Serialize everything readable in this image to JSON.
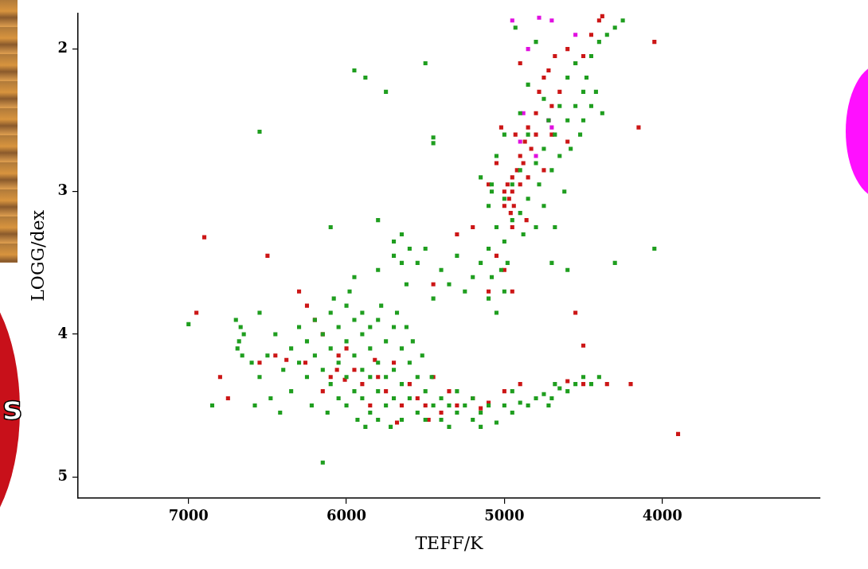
{
  "chart_data": {
    "type": "scatter",
    "xlabel": "TEFF/K",
    "ylabel": "LOGG/dex",
    "xlim": [
      7700,
      3000
    ],
    "ylim": [
      5.15,
      1.75
    ],
    "xticks": [
      7000,
      6000,
      5000,
      4000
    ],
    "yticks": [
      2,
      3,
      4,
      5
    ],
    "grid": false,
    "marker": "square",
    "annotations": [
      {
        "text": "s"
      }
    ],
    "series": [
      {
        "color": "#1f9e1f",
        "x": [
          6400,
          6350,
          6300,
          6300,
          6250,
          6250,
          6200,
          6200,
          6150,
          6150,
          6100,
          6100,
          6100,
          6050,
          6050,
          6050,
          6000,
          6000,
          6000,
          6000,
          5950,
          5950,
          5950,
          5900,
          5900,
          5900,
          5900,
          5850,
          5850,
          5850,
          5850,
          5800,
          5800,
          5800,
          5800,
          5750,
          5750,
          5750,
          5700,
          5700,
          5700,
          5650,
          5650,
          5650,
          5600,
          5600,
          5550,
          5550,
          5500,
          5500,
          6450,
          6500,
          6550,
          6550,
          6600,
          6480,
          6350,
          6220,
          6120,
          6080,
          5980,
          5930,
          5880,
          5780,
          5720,
          5680,
          5620,
          5580,
          5520,
          5460,
          6670,
          6680,
          6690,
          6660,
          6700,
          6650,
          7000,
          6850,
          6580,
          6420,
          5400,
          5400,
          5350,
          5300,
          5300,
          5250,
          5200,
          5200,
          5150,
          5100,
          5050,
          5000,
          4950,
          4900,
          4850,
          4800,
          4750,
          4700,
          4650,
          4600,
          4550,
          4500,
          4450,
          4400,
          5450,
          5350,
          5150,
          4950,
          4720,
          4680,
          5950,
          5800,
          5700,
          5650,
          5620,
          5550,
          5500,
          5450,
          5400,
          5350,
          5300,
          5250,
          5200,
          5150,
          5100,
          5100,
          5080,
          5050,
          5020,
          5000,
          6100,
          5800,
          5700,
          5650,
          5600,
          5450,
          5450,
          6550,
          5950,
          5880,
          5750,
          5500,
          6150,
          4050,
          4300,
          5150,
          5100,
          5080,
          5050,
          5000,
          4980,
          4950,
          4950,
          4900,
          4900,
          4880,
          4850,
          4850,
          4800,
          4800,
          4780,
          4750,
          4750,
          4720,
          4700,
          4700,
          4680,
          4650,
          4650,
          4620,
          4600,
          4600,
          4580,
          4550,
          4550,
          4520,
          4500,
          4500,
          4480,
          4450,
          4450,
          4420,
          4400,
          4380,
          4350,
          4300,
          4250,
          4850,
          4900,
          5000,
          4930,
          4800,
          5050,
          5000,
          4680,
          4600,
          5080,
          4750
        ],
        "values": [
          4.25,
          4.1,
          3.95,
          4.2,
          4.05,
          4.3,
          3.9,
          4.15,
          4.0,
          4.25,
          3.85,
          4.1,
          4.35,
          3.95,
          4.2,
          4.45,
          3.8,
          4.05,
          4.3,
          4.5,
          3.9,
          4.15,
          4.4,
          3.85,
          4.0,
          4.25,
          4.45,
          3.95,
          4.1,
          4.3,
          4.55,
          3.9,
          4.2,
          4.4,
          4.6,
          4.05,
          4.3,
          4.5,
          3.95,
          4.25,
          4.45,
          4.1,
          4.35,
          4.6,
          4.2,
          4.45,
          4.3,
          4.55,
          4.4,
          4.6,
          4.0,
          4.15,
          3.85,
          4.3,
          4.2,
          4.45,
          4.4,
          4.5,
          4.55,
          3.75,
          3.7,
          4.6,
          4.65,
          3.8,
          4.65,
          3.85,
          3.95,
          4.05,
          4.15,
          4.3,
          3.95,
          4.05,
          4.1,
          4.15,
          3.9,
          4.0,
          3.93,
          4.5,
          4.5,
          4.55,
          4.45,
          4.6,
          4.5,
          4.4,
          4.55,
          4.5,
          4.45,
          4.6,
          4.55,
          4.5,
          4.62,
          4.5,
          4.55,
          4.48,
          4.5,
          4.45,
          4.42,
          4.45,
          4.38,
          4.4,
          4.35,
          4.3,
          4.35,
          4.3,
          4.5,
          4.65,
          4.65,
          4.4,
          4.5,
          4.35,
          3.6,
          3.55,
          3.45,
          3.3,
          3.65,
          3.5,
          3.4,
          3.75,
          3.55,
          3.65,
          3.45,
          3.7,
          3.6,
          3.5,
          3.75,
          3.4,
          3.6,
          3.85,
          3.55,
          3.7,
          3.25,
          3.2,
          3.35,
          3.5,
          3.4,
          2.62,
          2.66,
          2.58,
          2.15,
          2.2,
          2.3,
          2.1,
          4.9,
          3.4,
          3.5,
          2.9,
          3.1,
          2.95,
          3.25,
          3.35,
          3.5,
          3.2,
          2.95,
          3.15,
          2.85,
          3.3,
          3.05,
          2.6,
          3.25,
          2.8,
          2.95,
          2.7,
          3.1,
          2.5,
          2.85,
          3.5,
          2.6,
          2.4,
          2.75,
          3.0,
          2.5,
          2.2,
          2.7,
          2.4,
          2.1,
          2.6,
          2.3,
          2.5,
          2.2,
          2.05,
          2.4,
          2.3,
          1.95,
          2.45,
          1.9,
          1.85,
          1.8,
          2.25,
          2.45,
          2.6,
          1.85,
          1.95,
          2.75,
          3.05,
          3.25,
          3.55,
          3.0,
          2.35
        ]
      },
      {
        "color": "#cc1616",
        "x": [
          6300,
          6250,
          6200,
          6150,
          6100,
          6050,
          6000,
          5950,
          5900,
          5850,
          5800,
          5750,
          5700,
          5650,
          5600,
          5550,
          5500,
          5450,
          5400,
          5350,
          5300,
          5200,
          5150,
          5100,
          5000,
          4900,
          4600,
          6450,
          6550,
          6150,
          6060,
          6010,
          5820,
          5680,
          5480,
          6260,
          6380,
          6900,
          6500,
          6950,
          6800,
          6750,
          3900,
          4550,
          4500,
          4150,
          4050,
          4350,
          4200,
          4500,
          5450,
          5300,
          5200,
          5100,
          5050,
          5000,
          4950,
          5000,
          5000,
          4980,
          4970,
          4960,
          4950,
          4950,
          4940,
          4920,
          4900,
          4900,
          4880,
          4870,
          4850,
          4850,
          4830,
          4800,
          4800,
          4780,
          4750,
          4720,
          4700,
          4680,
          4650,
          4600,
          4550,
          4500,
          4450,
          4400,
          4380,
          5050,
          5020,
          4900,
          4860,
          4750,
          4700,
          4600,
          4950,
          4930,
          5100
        ],
        "values": [
          3.7,
          3.8,
          3.9,
          4.0,
          4.3,
          4.15,
          4.1,
          4.25,
          4.35,
          4.5,
          4.3,
          4.4,
          4.2,
          4.5,
          4.35,
          4.45,
          4.5,
          4.3,
          4.55,
          4.4,
          4.5,
          4.45,
          4.52,
          4.48,
          4.4,
          4.35,
          4.33,
          4.15,
          4.2,
          4.4,
          4.25,
          4.32,
          4.18,
          4.62,
          4.6,
          4.2,
          4.18,
          3.32,
          3.45,
          3.85,
          4.3,
          4.45,
          4.7,
          3.85,
          4.08,
          2.55,
          1.95,
          4.35,
          4.35,
          4.35,
          3.65,
          3.3,
          3.25,
          3.7,
          3.45,
          3.55,
          3.7,
          3.1,
          3.0,
          2.95,
          3.05,
          3.15,
          2.9,
          3.0,
          3.1,
          2.85,
          2.95,
          2.75,
          2.8,
          2.65,
          2.55,
          2.9,
          2.7,
          2.45,
          2.6,
          2.3,
          2.2,
          2.15,
          2.4,
          2.05,
          2.3,
          2.0,
          2.1,
          2.05,
          1.9,
          1.8,
          1.77,
          2.8,
          2.55,
          2.1,
          3.2,
          2.85,
          2.6,
          2.65,
          3.25,
          2.6,
          2.95
        ]
      },
      {
        "color": "#e010e0",
        "x": [
          4950,
          4780,
          4850,
          4700,
          4880,
          4800,
          4720,
          4900,
          4550,
          4700
        ],
        "values": [
          1.8,
          1.78,
          2.0,
          1.8,
          2.45,
          2.75,
          2.5,
          2.65,
          1.9,
          2.55
        ]
      }
    ]
  }
}
